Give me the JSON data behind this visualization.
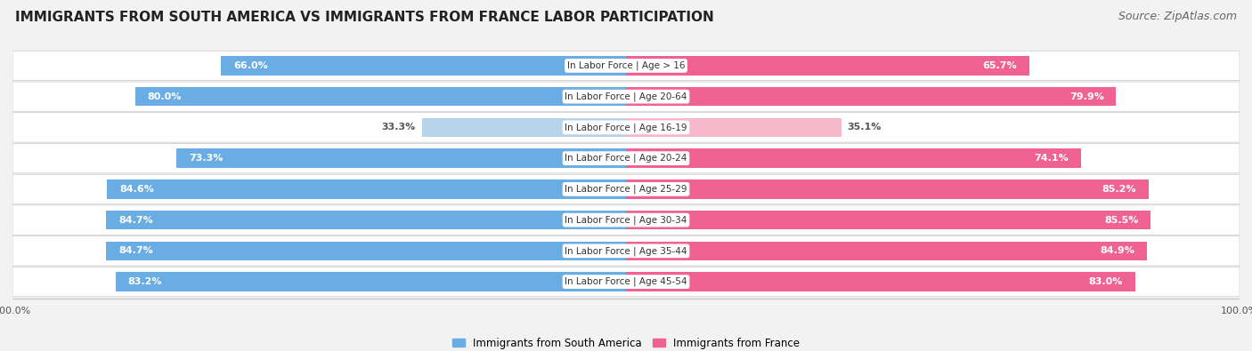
{
  "title": "IMMIGRANTS FROM SOUTH AMERICA VS IMMIGRANTS FROM FRANCE LABOR PARTICIPATION",
  "source": "Source: ZipAtlas.com",
  "categories": [
    "In Labor Force | Age > 16",
    "In Labor Force | Age 20-64",
    "In Labor Force | Age 16-19",
    "In Labor Force | Age 20-24",
    "In Labor Force | Age 25-29",
    "In Labor Force | Age 30-34",
    "In Labor Force | Age 35-44",
    "In Labor Force | Age 45-54"
  ],
  "south_america": [
    66.0,
    80.0,
    33.3,
    73.3,
    84.6,
    84.7,
    84.7,
    83.2
  ],
  "france": [
    65.7,
    79.9,
    35.1,
    74.1,
    85.2,
    85.5,
    84.9,
    83.0
  ],
  "south_america_color": "#6aade4",
  "south_america_light_color": "#b8d4ea",
  "france_color": "#f06292",
  "france_light_color": "#f8b8cb",
  "bg_color": "#f2f2f2",
  "row_bg_light": "#f8f8f8",
  "row_bg_dark": "#ebebeb",
  "max_value": 100.0,
  "bar_height": 0.62,
  "legend_sa": "Immigrants from South America",
  "legend_fr": "Immigrants from France",
  "title_fontsize": 11,
  "source_fontsize": 9,
  "label_fontsize": 8,
  "cat_fontsize": 7.5,
  "tick_fontsize": 8
}
